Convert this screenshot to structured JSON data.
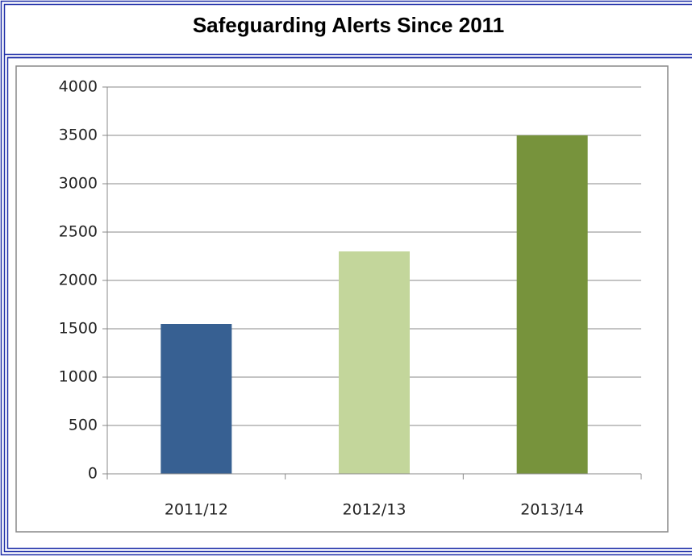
{
  "chart_data": {
    "type": "bar",
    "title": "Safeguarding Alerts Since 2011",
    "categories": [
      "2011/12",
      "2012/13",
      "2013/14"
    ],
    "values": [
      1550,
      2300,
      3500
    ],
    "colors": [
      "#376092",
      "#c3d69b",
      "#77933c"
    ],
    "ylim": [
      0,
      4000
    ],
    "yticks": [
      0,
      500,
      1000,
      1500,
      2000,
      2500,
      3000,
      3500,
      4000
    ],
    "grid": true
  }
}
